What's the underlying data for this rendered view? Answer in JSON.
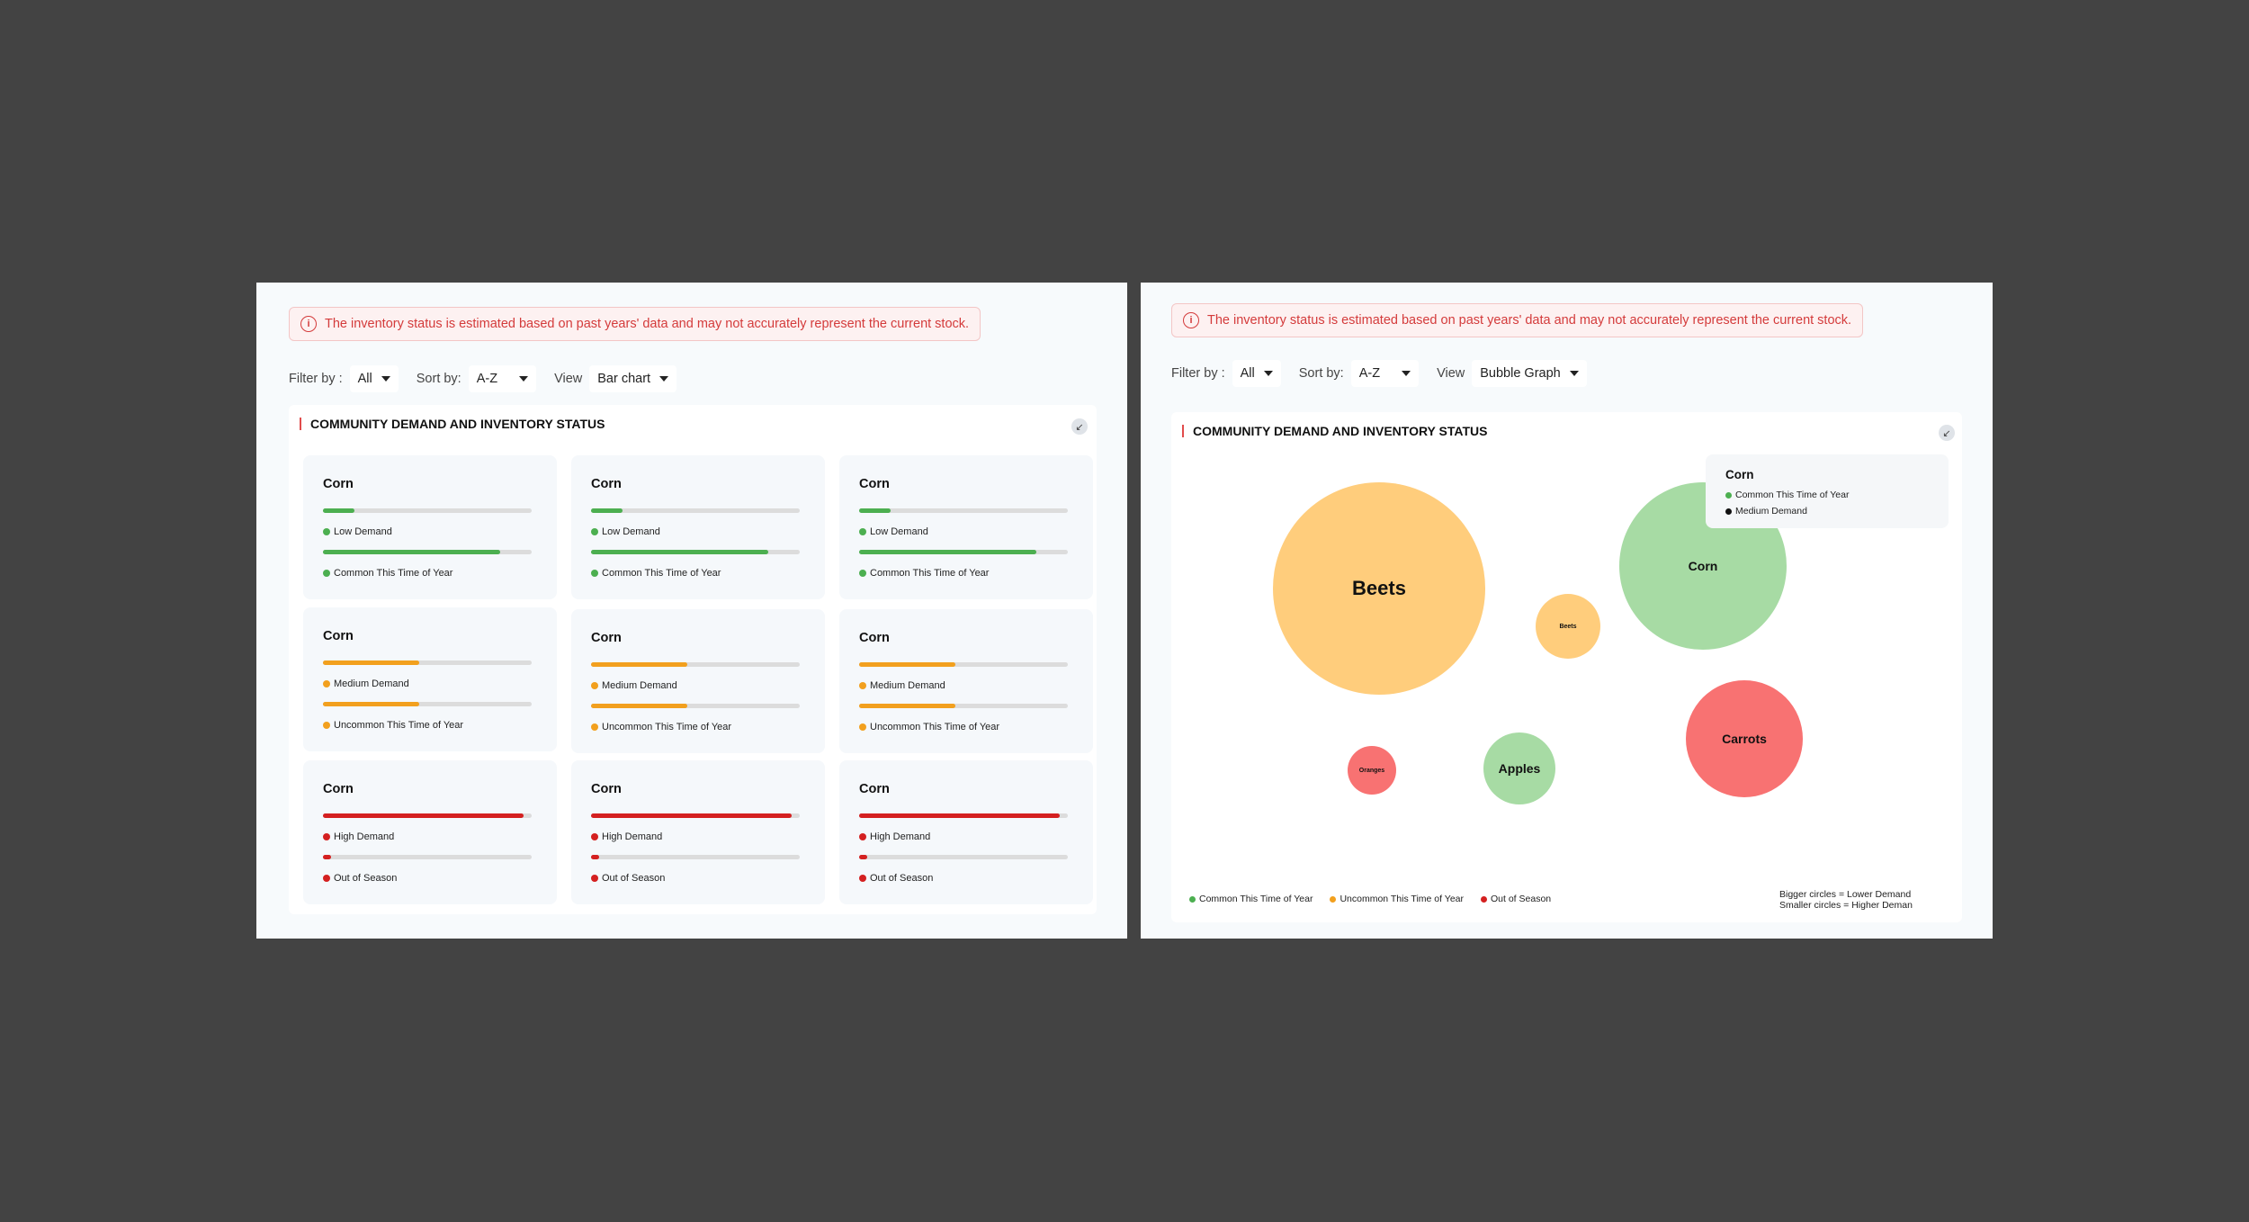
{
  "alert": {
    "icon": "info-icon",
    "message": "The inventory status is estimated based on past years' data and may not accurately represent the current stock."
  },
  "left": {
    "filter_label": "Filter by :",
    "filter_value": "All",
    "sort_label": "Sort by:",
    "sort_value": "A-Z",
    "view_label": "View",
    "view_value": "Bar chart",
    "title": "COMMUNITY DEMAND AND INVENTORY STATUS",
    "tiles": [
      {
        "name": "Corn",
        "demand": "Low Demand",
        "demand_level": 0.15,
        "season": "Common This Time of Year",
        "season_level": 0.85,
        "color": "#4caf50"
      },
      {
        "name": "Corn",
        "demand": "Low Demand",
        "demand_level": 0.15,
        "season": "Common This Time of Year",
        "season_level": 0.85,
        "color": "#4caf50"
      },
      {
        "name": "Corn",
        "demand": "Low Demand",
        "demand_level": 0.15,
        "season": "Common This Time of Year",
        "season_level": 0.85,
        "color": "#4caf50"
      },
      {
        "name": "Corn",
        "demand": "Medium Demand",
        "demand_level": 0.46,
        "season": "Uncommon This Time of Year",
        "season_level": 0.46,
        "color": "#f2a01e"
      },
      {
        "name": "Corn",
        "demand": "Medium Demand",
        "demand_level": 0.46,
        "season": "Uncommon This Time of Year",
        "season_level": 0.46,
        "color": "#f2a01e"
      },
      {
        "name": "Corn",
        "demand": "Medium Demand",
        "demand_level": 0.46,
        "season": "Uncommon This Time of Year",
        "season_level": 0.46,
        "color": "#f2a01e"
      },
      {
        "name": "Corn",
        "demand": "High Demand",
        "demand_level": 0.96,
        "season": "Out of Season",
        "season_level": 0.04,
        "color": "#d42020"
      },
      {
        "name": "Corn",
        "demand": "High Demand",
        "demand_level": 0.96,
        "season": "Out of Season",
        "season_level": 0.04,
        "color": "#d42020"
      },
      {
        "name": "Corn",
        "demand": "High Demand",
        "demand_level": 0.96,
        "season": "Out of Season",
        "season_level": 0.04,
        "color": "#d42020"
      }
    ]
  },
  "right": {
    "filter_label": "Filter by :",
    "filter_value": "All",
    "sort_label": "Sort by:",
    "sort_value": "A-Z",
    "view_label": "View",
    "view_value": "Bubble Graph",
    "title": "COMMUNITY DEMAND AND INVENTORY STATUS",
    "bubbles": [
      {
        "label": "Beets",
        "color": "#ffcd7c"
      },
      {
        "label": "Beets",
        "color": "#ffcd7c"
      },
      {
        "label": "Corn",
        "color": "#a7dba4"
      },
      {
        "label": "Carrots",
        "color": "#f87272"
      },
      {
        "label": "Oranges",
        "color": "#f87272"
      },
      {
        "label": "Apples",
        "color": "#a7dba4"
      }
    ],
    "tooltip": {
      "title": "Corn",
      "line1": "Common This Time of Year",
      "line1_color": "#4caf50",
      "line2": "Medium Demand",
      "line2_color": "#111111"
    },
    "legend": [
      {
        "label": "Common This Time of Year",
        "color": "#4caf50"
      },
      {
        "label": "Uncommon This Time of Year",
        "color": "#f2a01e"
      },
      {
        "label": "Out of Season",
        "color": "#d42020"
      }
    ],
    "note_line1": "Bigger circles = Lower Demand",
    "note_line2": "Smaller circles = Higher Deman"
  }
}
